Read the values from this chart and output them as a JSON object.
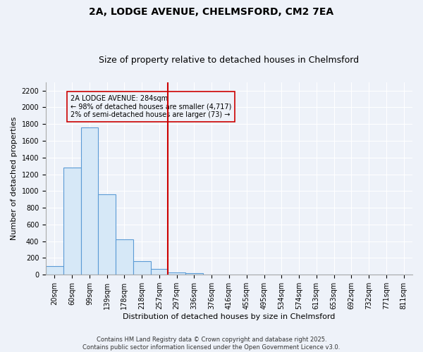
{
  "title_line1": "2A, LODGE AVENUE, CHELMSFORD, CM2 7EA",
  "title_line2": "Size of property relative to detached houses in Chelmsford",
  "xlabel": "Distribution of detached houses by size in Chelmsford",
  "ylabel": "Number of detached properties",
  "footer_line1": "Contains HM Land Registry data © Crown copyright and database right 2025.",
  "footer_line2": "Contains public sector information licensed under the Open Government Licence v3.0.",
  "annotation_line1": "2A LODGE AVENUE: 284sqm",
  "annotation_line2": "← 98% of detached houses are smaller (4,717)",
  "annotation_line3": "2% of semi-detached houses are larger (73) →",
  "vline_x": 6.5,
  "bar_color": "#d6e8f7",
  "bar_edge_color": "#5b9bd5",
  "vline_color": "#cc0000",
  "annotation_box_edge_color": "#cc0000",
  "categories": [
    "20sqm",
    "60sqm",
    "99sqm",
    "139sqm",
    "178sqm",
    "218sqm",
    "257sqm",
    "297sqm",
    "336sqm",
    "376sqm",
    "416sqm",
    "455sqm",
    "495sqm",
    "534sqm",
    "574sqm",
    "613sqm",
    "653sqm",
    "692sqm",
    "732sqm",
    "771sqm",
    "811sqm"
  ],
  "values": [
    100,
    1280,
    1760,
    960,
    420,
    160,
    65,
    30,
    15,
    0,
    0,
    0,
    0,
    0,
    0,
    0,
    0,
    0,
    0,
    0,
    0
  ],
  "ylim": [
    0,
    2300
  ],
  "yticks": [
    0,
    200,
    400,
    600,
    800,
    1000,
    1200,
    1400,
    1600,
    1800,
    2000,
    2200
  ],
  "bg_color": "#eef2f9",
  "grid_color": "#ffffff",
  "title_fontsize": 10,
  "subtitle_fontsize": 9,
  "axis_label_fontsize": 8,
  "tick_fontsize": 7,
  "footer_fontsize": 6,
  "annotation_fontsize": 7
}
